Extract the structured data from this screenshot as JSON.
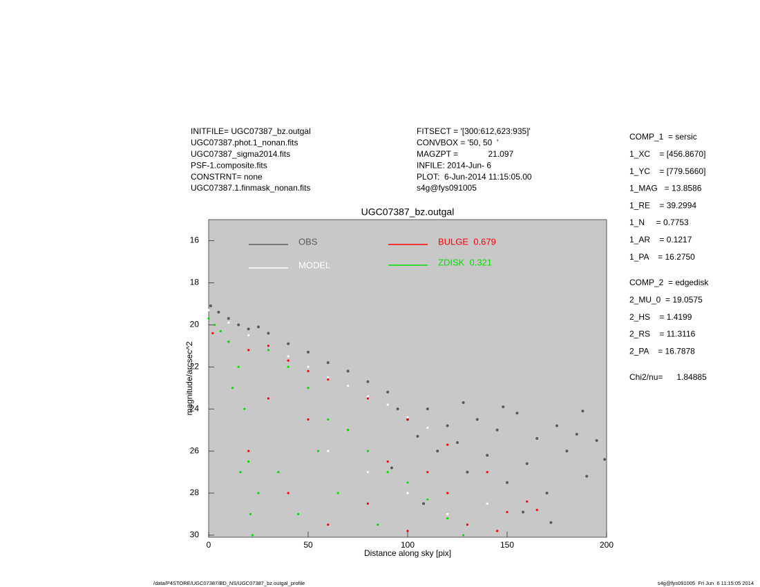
{
  "header": {
    "left": [
      "INITFILE= UGC07387_bz.outgal",
      "UGC07387.phot.1_nonan.fits",
      "UGC07387_sigma2014.fits",
      "PSF-1.composite.fits",
      "CONSTRNT= none",
      "UGC07387.1.finmask_nonan.fits"
    ],
    "middle": [
      "FITSECT = '[300:612,623:935]'",
      "CONVBOX = '50, 50  '",
      "MAGZPT =             21.097",
      "INFILE: 2014-Jun- 6",
      "PLOT:  6-Jun-2014 11:15:05.00",
      "s4g@fys091005"
    ]
  },
  "params": [
    "COMP_1  = sersic",
    "1_XC    = [456.8670]",
    "1_YC    = [779.5660]",
    "1_MAG   = 13.8586",
    "1_RE    = 39.2994",
    "1_N     = 0.7753",
    "1_AR    = 0.1217",
    "1_PA    = 16.2750",
    "COMP_2  = edgedisk",
    "2_MU_0  = 19.0575",
    "2_HS    = 1.4199",
    "2_RS    = 11.3116",
    "2_PA    = 16.7878",
    "Chi2/nu=      1.84885"
  ],
  "footer": {
    "left": "/data/P4STORE/UGC07387/BD_NS/UGC07387_bz.outgal_profile",
    "right": "s4g@fys091005  Fri Jun  6 11:15:05 2014"
  },
  "chart_data": {
    "type": "scatter",
    "title": "UGC07387_bz.outgal",
    "x_label": "Distance along sky [pix]",
    "y_label": "magnitude/arcsec^2",
    "xlim": [
      0,
      200
    ],
    "ylim": [
      30.1,
      15
    ],
    "xticks": [
      0,
      50,
      100,
      150,
      200
    ],
    "yticks": [
      16,
      18,
      20,
      22,
      24,
      26,
      28,
      30
    ],
    "background": "#c8c8c8",
    "series": [
      {
        "name": "OBS",
        "color": "#5a5a5a",
        "x": [
          1,
          5,
          10,
          15,
          20,
          25,
          30,
          40,
          50,
          60,
          70,
          80,
          90,
          95,
          100,
          105,
          110,
          115,
          120,
          125,
          130,
          135,
          140,
          145,
          150,
          155,
          160,
          165,
          170,
          175,
          180,
          185,
          190,
          195,
          199,
          92,
          108,
          128,
          148,
          172,
          188,
          158
        ],
        "values": [
          19.1,
          19.4,
          19.7,
          20.0,
          20.2,
          20.1,
          20.4,
          20.9,
          21.3,
          21.8,
          22.2,
          22.7,
          23.2,
          24.0,
          24.5,
          25.3,
          24.0,
          26.0,
          24.8,
          25.6,
          27.0,
          24.5,
          26.2,
          25.0,
          27.5,
          24.2,
          26.6,
          25.4,
          28.0,
          24.8,
          26.0,
          25.2,
          27.2,
          25.5,
          26.4,
          26.8,
          28.5,
          23.7,
          23.9,
          29.4,
          24.1,
          28.9
        ]
      },
      {
        "name": "MODEL",
        "color": "#ffffff",
        "x": [
          0,
          10,
          20,
          30,
          40,
          50,
          60,
          70,
          80,
          90,
          100,
          110,
          60,
          80,
          100,
          120,
          140
        ],
        "values": [
          19.3,
          19.9,
          20.5,
          21.0,
          21.5,
          22.0,
          22.5,
          22.9,
          23.4,
          23.8,
          24.4,
          24.9,
          26.0,
          27.0,
          28.0,
          29.0,
          28.5
        ]
      },
      {
        "name": "BULGE  0.679",
        "color": "#ff0000",
        "x": [
          2,
          10,
          20,
          30,
          40,
          50,
          60,
          80,
          100,
          120,
          140,
          160,
          165,
          150,
          130,
          110,
          90,
          70,
          50,
          30,
          20,
          40,
          60,
          80,
          100,
          120,
          145
        ],
        "values": [
          20.4,
          20.8,
          21.2,
          21.0,
          21.7,
          22.2,
          22.6,
          23.5,
          24.5,
          25.7,
          27.0,
          28.4,
          28.8,
          28.9,
          29.5,
          27.0,
          26.5,
          25.0,
          24.5,
          23.5,
          26.0,
          28.0,
          29.5,
          28.5,
          29.8,
          28.0,
          29.8
        ]
      },
      {
        "name": "ZDISK  0.321",
        "color": "#00e000",
        "x": [
          0,
          3,
          6,
          10,
          15,
          18,
          20,
          21,
          22,
          30,
          40,
          50,
          60,
          70,
          80,
          90,
          100,
          110,
          120,
          128,
          25,
          35,
          45,
          55,
          65,
          85,
          12,
          16
        ],
        "values": [
          19.7,
          20.0,
          20.3,
          20.8,
          22.0,
          24.0,
          26.5,
          29.0,
          30.0,
          21.2,
          22.0,
          23.0,
          24.5,
          25.0,
          26.0,
          27.0,
          27.5,
          28.3,
          29.2,
          30.0,
          28.0,
          27.0,
          29.0,
          26.0,
          28.0,
          29.5,
          23.0,
          27.0
        ]
      }
    ]
  }
}
